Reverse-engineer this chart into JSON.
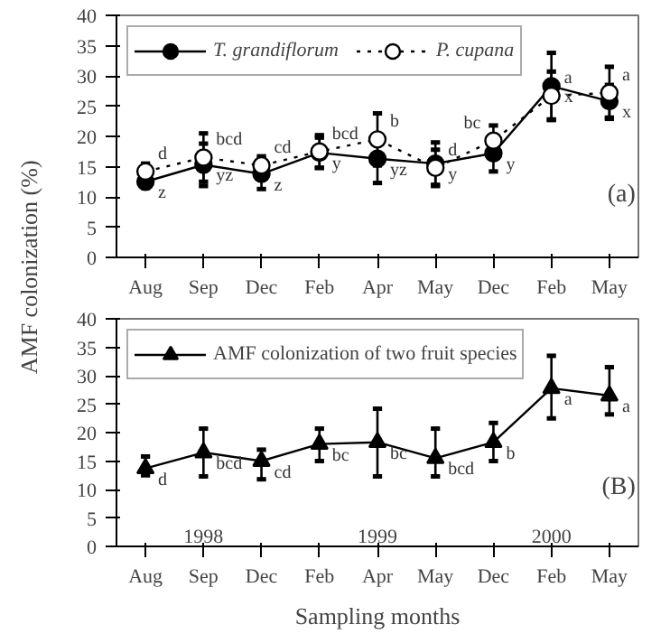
{
  "chart_data": [
    {
      "type": "line",
      "ylabel": "AMF colonization (%)",
      "categories": [
        "Aug",
        "Sep",
        "Dec",
        "Feb",
        "Apr",
        "May",
        "Dec",
        "Feb",
        "May"
      ],
      "ylim": [
        0,
        40
      ],
      "yticks": [
        0,
        5,
        10,
        15,
        20,
        25,
        30,
        35,
        40
      ],
      "grid": false,
      "legend": "top left",
      "annotations": [
        "(a)"
      ],
      "series": [
        {
          "name": "T. grandiflorum",
          "color": "#000000",
          "marker": "circle",
          "line_style": "solid",
          "values": [
            12.5,
            15.3,
            13.8,
            17.3,
            16.3,
            15.5,
            17.2,
            28.3,
            25.8
          ],
          "errors": [
            1,
            3.5,
            2.5,
            2.5,
            4,
            3.5,
            3,
            5.5,
            2.7
          ],
          "value_labels": [
            "z",
            "yz",
            "z",
            "y",
            "yz",
            "y",
            "y",
            "x",
            "x"
          ]
        },
        {
          "name": "P. cupana",
          "color": "#000000",
          "marker": "circle_open",
          "line_style": "dotted",
          "values": [
            14.2,
            16.5,
            15.2,
            17.5,
            19.5,
            14.8,
            19.3,
            26.7,
            27.2
          ],
          "errors": [
            1.3,
            4,
            1.5,
            2.7,
            4.3,
            3,
            2.5,
            4,
            4.3
          ],
          "value_labels": [
            "d",
            "bcd",
            "cd",
            "bcd",
            "b",
            "d",
            "bc",
            "a",
            "a"
          ]
        }
      ]
    },
    {
      "type": "line",
      "xlabel": "Sampling months",
      "categories": [
        "Aug",
        "Sep",
        "Dec",
        "Feb",
        "Apr",
        "May",
        "Dec",
        "Feb",
        "May"
      ],
      "ylim": [
        0,
        40
      ],
      "yticks": [
        0,
        5,
        10,
        15,
        20,
        25,
        30,
        35,
        40
      ],
      "grid": false,
      "legend": "top left",
      "annotations": [
        "(B)",
        "1998",
        "1999",
        "2000"
      ],
      "series": [
        {
          "name": "AMF colonization of two fruit species",
          "color": "#000000",
          "marker": "triangle",
          "line_style": "solid",
          "values": [
            13.7,
            16.5,
            15,
            18,
            18.3,
            15.5,
            18.3,
            27.8,
            26.5
          ],
          "errors": [
            [
              12.5,
              15.8
            ],
            [
              12.3,
              20.7
            ],
            [
              11.8,
              17
            ],
            [
              15,
              20.7
            ],
            [
              12.3,
              24.2
            ],
            [
              12.3,
              20.7
            ],
            [
              15,
              21.7
            ],
            [
              22.5,
              33.5
            ],
            [
              23.2,
              31.5
            ]
          ],
          "value_labels": [
            "d",
            "bcd",
            "cd",
            "bc",
            "bc",
            "bcd",
            "b",
            "a",
            "a"
          ]
        }
      ]
    }
  ]
}
